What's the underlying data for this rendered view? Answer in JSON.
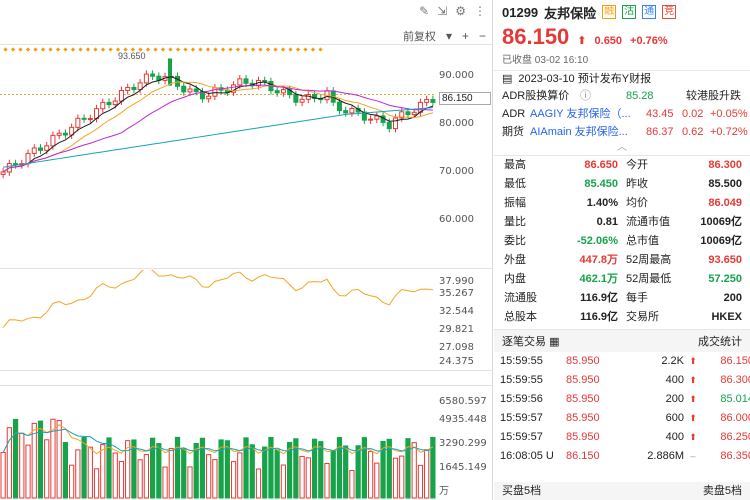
{
  "toolbar": {
    "adjust_label": "前复权",
    "icons": [
      "pencil-icon",
      "expand-icon",
      "settings-icon",
      "more-icon"
    ]
  },
  "chart": {
    "price_axis": [
      "90.000",
      "80.000",
      "70.000",
      "60.000"
    ],
    "current_price_tag": "86.150",
    "peak_label": "93.650",
    "indicator_axis": [
      "37.990",
      "35.267",
      "32.544",
      "29.821",
      "27.098",
      "24.375"
    ],
    "volume_axis": [
      "6580.597",
      "4935.448",
      "3290.299",
      "1645.149"
    ],
    "volume_unit": "万",
    "colors": {
      "up": "#e53935",
      "down": "#16a34a",
      "ma5": "#1a1a1a",
      "ma10": "#f4a522",
      "ma20": "#c026d3",
      "ma60": "#17a2b8"
    }
  },
  "quote": {
    "code": "01299",
    "name": "友邦保险",
    "tags": [
      "融",
      "沽",
      "通",
      "竞"
    ],
    "price": "86.150",
    "change": "0.650",
    "change_pct": "+0.76%",
    "status": "已收盘 03-02 16:10",
    "report": "2023-03-10 预计发布Y财报",
    "adr_label": "ADR股换算价",
    "adr_price": "85.28",
    "adr_compare": "较港股升跌",
    "adr_line": {
      "tag": "ADR",
      "name": "AAGIY 友邦保险（...",
      "price": "43.45",
      "chg": "0.02",
      "pct": "+0.05%"
    },
    "fut_line": {
      "tag": "期货",
      "name": "AIAmain 友邦保险...",
      "price": "86.37",
      "chg": "0.62",
      "pct": "+0.72%"
    }
  },
  "stats": [
    [
      "最高",
      "86.650",
      "今开",
      "86.300"
    ],
    [
      "最低",
      "85.450",
      "昨收",
      "85.500"
    ],
    [
      "振幅",
      "1.40%",
      "均价",
      "86.049"
    ],
    [
      "量比",
      "0.81",
      "流通市值",
      "10069亿"
    ],
    [
      "委比",
      "-52.06%",
      "总市值",
      "10069亿"
    ],
    [
      "外盘",
      "447.8万",
      "52周最高",
      "93.650"
    ],
    [
      "内盘",
      "462.1万",
      "52周最低",
      "57.250"
    ],
    [
      "流通股",
      "116.9亿",
      "每手",
      "200"
    ],
    [
      "总股本",
      "116.9亿",
      "交易所",
      "HKEX"
    ]
  ],
  "trades": {
    "title": "逐笔交易",
    "stats_link": "成交统计",
    "rows": [
      [
        "15:59:55",
        "85.950",
        "2.2K",
        "86.150"
      ],
      [
        "15:59:55",
        "85.950",
        "400",
        "86.300"
      ],
      [
        "15:59:56",
        "85.950",
        "200",
        "85.014"
      ],
      [
        "15:59:57",
        "85.950",
        "600",
        "86.000"
      ],
      [
        "15:59:57",
        "85.950",
        "400",
        "86.250"
      ],
      [
        "16:08:05 U",
        "86.150",
        "2.886M",
        "86.350"
      ]
    ]
  },
  "footer": {
    "buy": "买盘5档",
    "sell": "卖盘5档"
  }
}
